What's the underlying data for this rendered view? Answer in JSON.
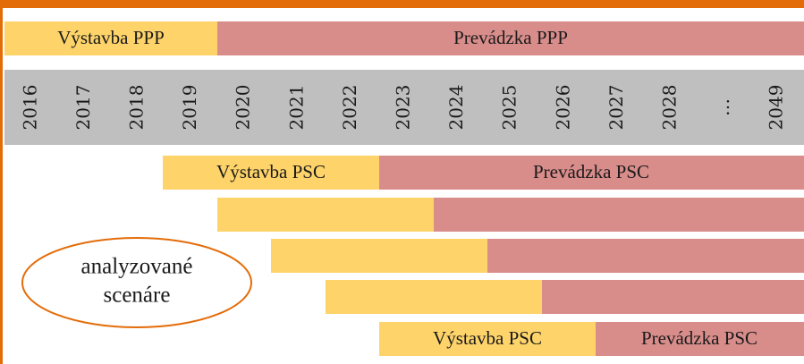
{
  "top": {
    "construction": "Výstavba PPP",
    "operation": "Prevádzka PPP"
  },
  "years": [
    "2016",
    "2017",
    "2018",
    "2019",
    "2020",
    "2021",
    "2022",
    "2023",
    "2024",
    "2025",
    "2026",
    "2027",
    "2028",
    "…",
    "2049"
  ],
  "scenario_first": {
    "construction": "Výstavba PSC",
    "operation": "Prevádzka PSC"
  },
  "scenario_last": {
    "construction": "Výstavba PSC",
    "operation": "Prevádzka PSC"
  },
  "note": {
    "line1": "analyzované",
    "line2": "scenáre"
  }
}
